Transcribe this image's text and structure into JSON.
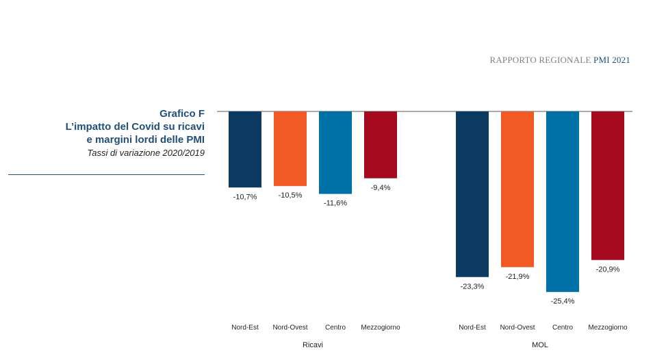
{
  "header": {
    "brand_prefix": "RAPPORTO REGIONALE ",
    "brand_accent": "PMI 2021"
  },
  "figure": {
    "title_line1": "Grafico F",
    "title_line2": "L’impatto del Covid su ricavi",
    "title_line3": "e margini lordi delle PMI",
    "subtitle": "Tassi di variazione 2020/2019"
  },
  "chart_data": {
    "type": "bar",
    "title": "L’impatto del Covid su ricavi e margini lordi delle PMI",
    "grid": false,
    "legend": "none",
    "ylim": [
      -26,
      0
    ],
    "categories": [
      "Nord-Est",
      "Nord-Ovest",
      "Centro",
      "Mezzogiorno"
    ],
    "colors": [
      "#0c3a60",
      "#f15a24",
      "#0071a6",
      "#a50a1e"
    ],
    "groups": [
      {
        "name": "Ricavi",
        "values": [
          -10.7,
          -10.5,
          -11.6,
          -9.4
        ],
        "labels": [
          "-10,7%",
          "-10,5%",
          "-11,6%",
          "-9,4%"
        ]
      },
      {
        "name": "MOL",
        "values": [
          -23.3,
          -21.9,
          -25.4,
          -20.9
        ],
        "labels": [
          "-23,3%",
          "-21,9%",
          "-25,4%",
          "-20,9%"
        ]
      }
    ]
  }
}
